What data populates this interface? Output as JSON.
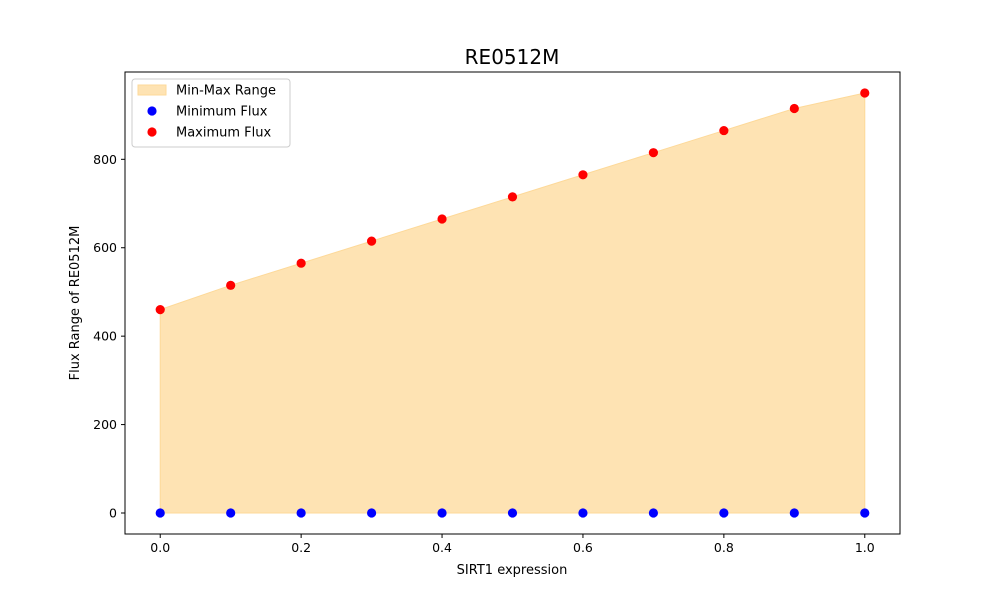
{
  "chart_data": {
    "type": "scatter",
    "title": "RE0512M",
    "xlabel": "SIRT1 expression",
    "ylabel": "Flux Range of RE0512M",
    "x": [
      0.0,
      0.1,
      0.2,
      0.3,
      0.4,
      0.5,
      0.6,
      0.7,
      0.8,
      0.9,
      1.0
    ],
    "series": [
      {
        "name": "Min-Max Range",
        "kind": "fill_between",
        "color": "#fdd999",
        "lower": [
          0,
          0,
          0,
          0,
          0,
          0,
          0,
          0,
          0,
          0,
          0
        ],
        "upper": [
          460,
          515,
          565,
          615,
          665,
          715,
          765,
          815,
          865,
          915,
          950
        ]
      },
      {
        "name": "Minimum Flux",
        "kind": "scatter",
        "color": "#0000ff",
        "values": [
          0,
          0,
          0,
          0,
          0,
          0,
          0,
          0,
          0,
          0,
          0
        ]
      },
      {
        "name": "Maximum Flux",
        "kind": "scatter",
        "color": "#ff0000",
        "values": [
          460,
          515,
          565,
          615,
          665,
          715,
          765,
          815,
          865,
          915,
          950
        ]
      }
    ],
    "xlim": [
      -0.05,
      1.05
    ],
    "ylim": [
      -47.5,
      997.5
    ],
    "xticks": [
      "0.0",
      "0.2",
      "0.4",
      "0.6",
      "0.8",
      "1.0"
    ],
    "yticks": [
      "0",
      "200",
      "400",
      "600",
      "800"
    ],
    "grid": false,
    "legend_position": "upper-left"
  }
}
